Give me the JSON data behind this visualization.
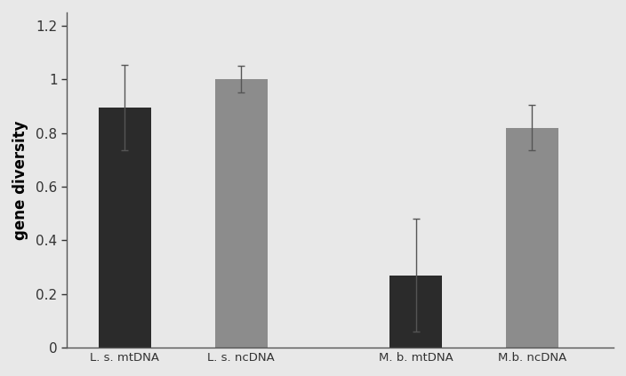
{
  "categories": [
    "L. s. mtDNA",
    "L. s. ncDNA",
    "M. b. mtDNA",
    "M.b. ncDNA"
  ],
  "values": [
    0.895,
    1.0,
    0.27,
    0.82
  ],
  "errors": [
    0.16,
    0.05,
    0.21,
    0.085
  ],
  "bar_colors": [
    "#2b2b2b",
    "#8c8c8c",
    "#2b2b2b",
    "#8c8c8c"
  ],
  "ylabel": "gene diversity",
  "ylim": [
    0,
    1.25
  ],
  "yticks": [
    0,
    0.2,
    0.4,
    0.6,
    0.8,
    1.0,
    1.2
  ],
  "background_color": "#e8e8e8",
  "bar_width": 0.45,
  "bar_positions": [
    0.5,
    1.5,
    3.0,
    4.0
  ],
  "edge_color": "none",
  "error_color": "#555555"
}
